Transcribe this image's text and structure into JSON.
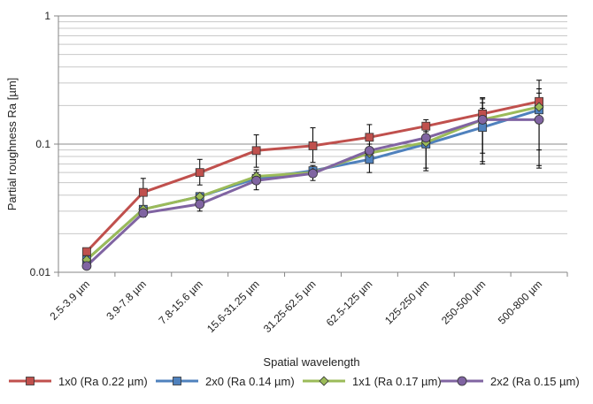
{
  "chart_data": {
    "type": "line",
    "title": "",
    "xlabel": "Spatial wavelength",
    "ylabel": "Partial roughness Ra [µm]",
    "yscale": "log",
    "ylim": [
      0.01,
      1
    ],
    "y_ticks": [
      {
        "value": 0.01,
        "label": "0.01"
      },
      {
        "value": 0.1,
        "label": "0.1"
      },
      {
        "value": 1,
        "label": "1"
      }
    ],
    "grid": "horizontal minor and major",
    "legend_position": "bottom",
    "categories": [
      "2.5-3.9 µm",
      "3.9-7.8 µm",
      "7.8-15.6 µm",
      "15.6-31.25 µm",
      "31.25-62.5 µm",
      "62.5-125 µm",
      "125-250 µm",
      "250-500 µm",
      "500-800 µm"
    ],
    "series": [
      {
        "name": "1x0 (Ra 0.22 µm)",
        "color": "#c0504d",
        "marker": "square",
        "values": [
          0.0145,
          0.042,
          0.06,
          0.089,
          0.097,
          0.113,
          0.138,
          0.172,
          0.215
        ],
        "err_high": [
          null,
          0.054,
          0.076,
          0.118,
          0.134,
          0.142,
          0.155,
          0.23,
          0.315
        ],
        "err_low": [
          null,
          0.032,
          0.048,
          0.066,
          0.072,
          0.088,
          0.125,
          0.13,
          0.145
        ]
      },
      {
        "name": "2x0 (Ra 0.14 µm)",
        "color": "#4f81bd",
        "marker": "square",
        "values": [
          0.0125,
          0.031,
          0.039,
          0.054,
          0.062,
          0.076,
          0.1,
          0.135,
          0.185
        ],
        "err_high": [
          null,
          null,
          null,
          null,
          null,
          0.088,
          0.115,
          0.21,
          0.27
        ],
        "err_low": [
          null,
          null,
          null,
          null,
          null,
          0.06,
          0.062,
          0.07,
          0.068
        ]
      },
      {
        "name": "1x1 (Ra 0.17 µm)",
        "color": "#9bbb59",
        "marker": "diamond",
        "values": [
          0.0125,
          0.031,
          0.039,
          0.056,
          0.06,
          0.085,
          0.103,
          0.155,
          0.195
        ],
        "err_high": [
          null,
          null,
          null,
          0.063,
          null,
          null,
          0.12,
          0.225,
          0.25
        ],
        "err_low": [
          null,
          null,
          null,
          0.049,
          null,
          null,
          0.065,
          0.073,
          0.09
        ]
      },
      {
        "name": "2x2 (Ra 0.15 µm)",
        "color": "#8064a2",
        "marker": "circle",
        "values": [
          0.0112,
          0.029,
          0.034,
          0.052,
          0.059,
          0.089,
          0.112,
          0.155,
          0.155
        ],
        "err_high": [
          0.0135,
          0.032,
          0.04,
          0.06,
          0.068,
          0.1,
          0.125,
          0.19,
          0.22
        ],
        "err_low": [
          0.0105,
          0.027,
          0.03,
          0.044,
          0.052,
          0.078,
          0.095,
          0.085,
          0.065
        ]
      }
    ]
  }
}
